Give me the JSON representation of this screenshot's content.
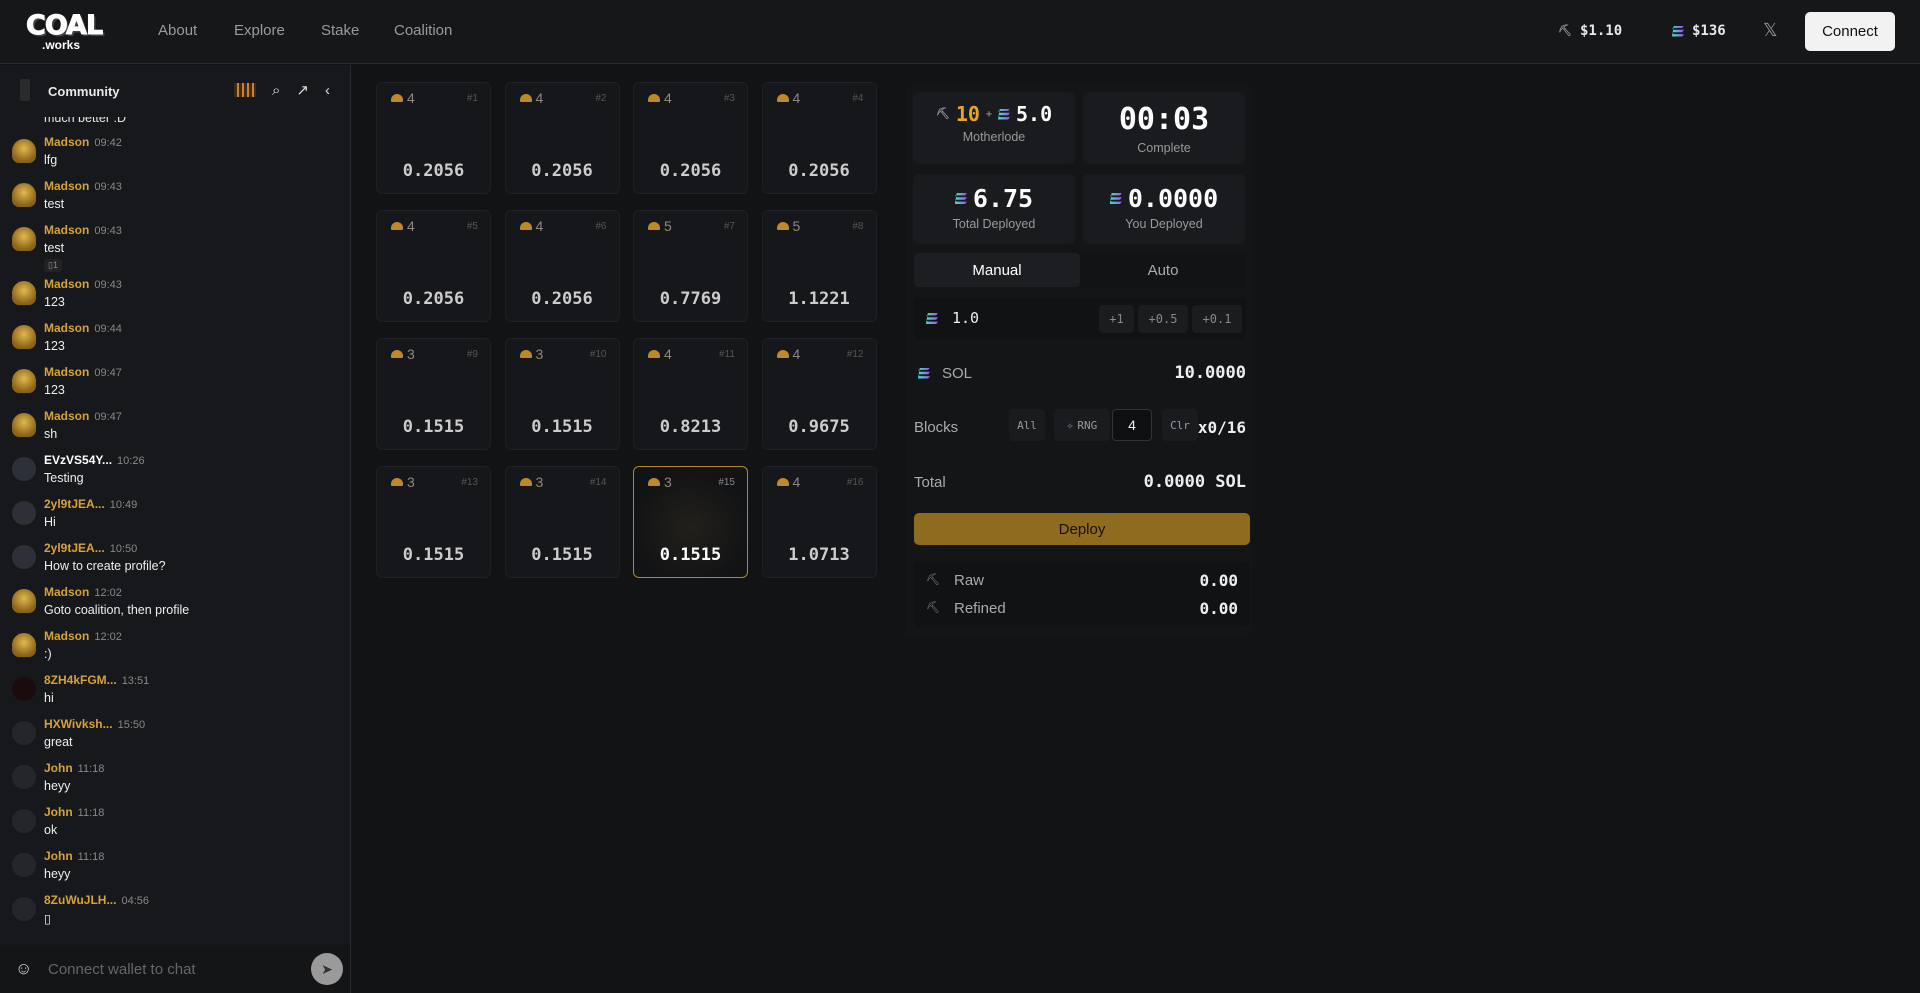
{
  "header": {
    "logo": {
      "main": "COAL",
      "sub": ".works"
    },
    "nav": [
      "About",
      "Explore",
      "Stake",
      "Coalition"
    ],
    "coal_price": "$1.10",
    "sol_price": "$136",
    "x_icon": "x-logo-icon",
    "connect_label": "Connect"
  },
  "chat": {
    "title": "Community",
    "partial_message": "much better :D",
    "messages": [
      {
        "name": "Madson",
        "time": "09:42",
        "text": "lfg",
        "avatar": "miner"
      },
      {
        "name": "Madson",
        "time": "09:43",
        "text": "test",
        "avatar": "miner"
      },
      {
        "name": "Madson",
        "time": "09:43",
        "text": "test",
        "reaction": "▯1",
        "avatar": "miner"
      },
      {
        "name": "Madson",
        "time": "09:43",
        "text": "123",
        "avatar": "miner"
      },
      {
        "name": "Madson",
        "time": "09:44",
        "text": "123",
        "avatar": "miner"
      },
      {
        "name": "Madson",
        "time": "09:47",
        "text": "123",
        "avatar": "miner"
      },
      {
        "name": "Madson",
        "time": "09:47",
        "text": "sh",
        "avatar": "miner"
      },
      {
        "name": "EVzVS54Y...",
        "time": "10:26",
        "text": "Testing",
        "avatar": "dark",
        "white": true
      },
      {
        "name": "2yl9tJEA...",
        "time": "10:49",
        "text": "Hi",
        "avatar": "dark"
      },
      {
        "name": "2yl9tJEA...",
        "time": "10:50",
        "text": "How to create profile?",
        "avatar": "dark"
      },
      {
        "name": "Madson",
        "time": "12:02",
        "text": "Goto coalition, then profile",
        "avatar": "miner"
      },
      {
        "name": "Madson",
        "time": "12:02",
        "text": ":)",
        "avatar": "miner"
      },
      {
        "name": "8ZH4kFGM...",
        "time": "13:51",
        "text": "hi",
        "avatar": "red"
      },
      {
        "name": "HXWivksh...",
        "time": "15:50",
        "text": "great",
        "avatar": "gray"
      },
      {
        "name": "John",
        "time": "11:18",
        "text": "heyy",
        "avatar": "gray"
      },
      {
        "name": "John",
        "time": "11:18",
        "text": "ok",
        "avatar": "gray"
      },
      {
        "name": "John",
        "time": "11:18",
        "text": "heyy",
        "avatar": "gray"
      },
      {
        "name": "8ZuWuJLH...",
        "time": "04:56",
        "text": "▯",
        "avatar": "gray"
      }
    ],
    "input_placeholder": "Connect wallet to chat"
  },
  "grid": {
    "tiles": [
      {
        "id": "#1",
        "miners": "4",
        "value": "0.2056"
      },
      {
        "id": "#2",
        "miners": "4",
        "value": "0.2056"
      },
      {
        "id": "#3",
        "miners": "4",
        "value": "0.2056"
      },
      {
        "id": "#4",
        "miners": "4",
        "value": "0.2056"
      },
      {
        "id": "#5",
        "miners": "4",
        "value": "0.2056"
      },
      {
        "id": "#6",
        "miners": "4",
        "value": "0.2056"
      },
      {
        "id": "#7",
        "miners": "5",
        "value": "0.7769"
      },
      {
        "id": "#8",
        "miners": "5",
        "value": "1.1221"
      },
      {
        "id": "#9",
        "miners": "3",
        "value": "0.1515"
      },
      {
        "id": "#10",
        "miners": "3",
        "value": "0.1515"
      },
      {
        "id": "#11",
        "miners": "4",
        "value": "0.8213"
      },
      {
        "id": "#12",
        "miners": "4",
        "value": "0.9675"
      },
      {
        "id": "#13",
        "miners": "3",
        "value": "0.1515"
      },
      {
        "id": "#14",
        "miners": "3",
        "value": "0.1515"
      },
      {
        "id": "#15",
        "miners": "3",
        "value": "0.1515",
        "selected": true
      },
      {
        "id": "#16",
        "miners": "4",
        "value": "1.0713"
      }
    ]
  },
  "panel": {
    "motherlode": {
      "coal": "10",
      "plus": "+",
      "sol": "5.0",
      "label": "Motherlode"
    },
    "timer": {
      "value": "00:03",
      "label": "Complete"
    },
    "total_deployed": {
      "value": "6.75",
      "label": "Total Deployed"
    },
    "you_deployed": {
      "value": "0.0000",
      "label": "You Deployed"
    },
    "tabs": [
      "Manual",
      "Auto"
    ],
    "amount": "1.0",
    "quick": [
      "+1",
      "+0.5",
      "+0.1"
    ],
    "balance": {
      "label": "SOL",
      "value": "10.0000"
    },
    "blocks": {
      "label": "Blocks",
      "all": "All",
      "rng": "RNG",
      "count": "4",
      "clear": "Clr",
      "selected": "x0/16"
    },
    "total": {
      "label": "Total",
      "value": "0.0000 SOL"
    },
    "deploy_label": "Deploy",
    "rewards": [
      {
        "label": "Raw",
        "value": "0.00"
      },
      {
        "label": "Refined",
        "value": "0.00"
      }
    ]
  },
  "colors": {
    "accent": "#d5a23a",
    "deploy": "#8f6b20",
    "background": "#121315"
  }
}
